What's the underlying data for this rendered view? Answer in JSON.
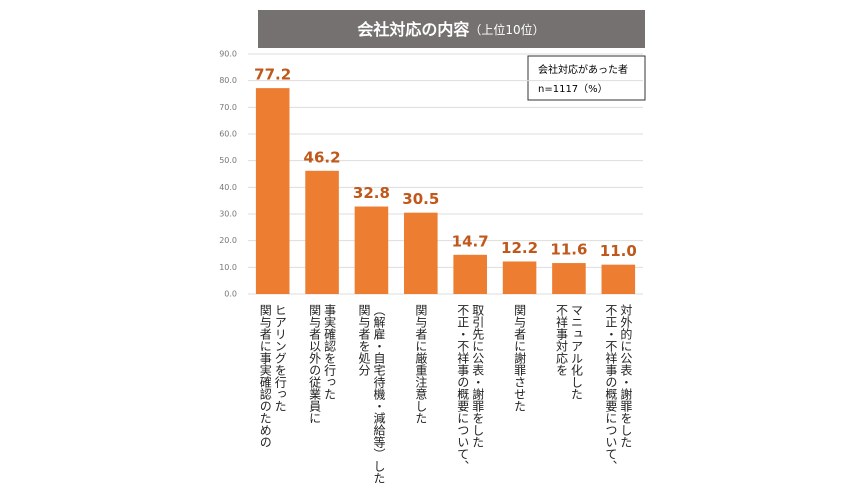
{
  "chart_data": {
    "type": "bar",
    "title": "会社対応の内容",
    "subtitle": "（上位10位）",
    "note": [
      "会社対応があった者",
      "n=1117（%）"
    ],
    "categories": [
      [
        "関与者に事実確認のための",
        "ヒアリングを行った"
      ],
      [
        "関与者以外の従業員に",
        "事実確認を行った"
      ],
      [
        "関与者を処分",
        "（解雇・自宅待機・減給等）した"
      ],
      [
        "関与者に厳重注意した"
      ],
      [
        "不正・不祥事の概要について、",
        "取引先に公表・謝罪をした"
      ],
      [
        "関与者に謝罪させた"
      ],
      [
        "不祥事対応を",
        "マニュアル化した"
      ],
      [
        "不正・不祥事の概要について、",
        "対外的に公表・謝罪をした"
      ]
    ],
    "values": [
      77.2,
      46.2,
      32.8,
      30.5,
      14.7,
      12.2,
      11.6,
      11.0
    ],
    "value_labels": [
      "77.2",
      "46.2",
      "32.8",
      "30.5",
      "14.7",
      "12.2",
      "11.6",
      "11.0"
    ],
    "color": "#ed7d31",
    "ylim": [
      0,
      90
    ],
    "yticks": [
      {
        "value": 0,
        "label": "0.0"
      },
      {
        "value": 10,
        "label": "10.0"
      },
      {
        "value": 20,
        "label": "20.0"
      },
      {
        "value": 30,
        "label": "30.0"
      },
      {
        "value": 40,
        "label": "40.0"
      },
      {
        "value": 50,
        "label": "50.0"
      },
      {
        "value": 60,
        "label": "60.0"
      },
      {
        "value": 70,
        "label": "70.0"
      },
      {
        "value": 80,
        "label": "80.0"
      },
      {
        "value": 90,
        "label": "90.0"
      }
    ],
    "grid": true
  }
}
